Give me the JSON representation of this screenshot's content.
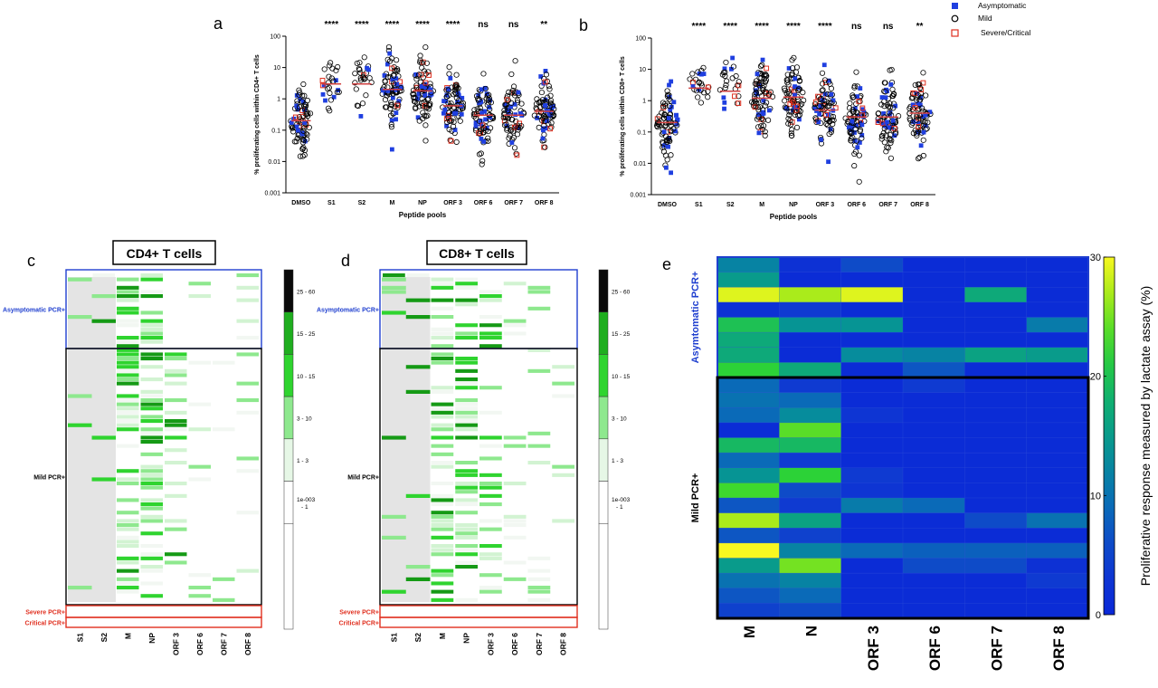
{
  "chart_data": [
    {
      "panel": "a",
      "type": "scatter",
      "ylabel": "% proliferating cells within CD4+ T cells",
      "xlabel": "Peptide pools",
      "yscale": "log",
      "ylim": [
        0.001,
        100
      ],
      "yticks": [
        "0.001",
        "0.01",
        "0.1",
        "1",
        "10",
        "100"
      ],
      "categories": [
        "DMSO",
        "S1",
        "S2",
        "M",
        "NP",
        "ORF 3",
        "ORF 6",
        "ORF 7",
        "ORF 8"
      ],
      "significance": [
        "",
        "****",
        "****",
        "****",
        "****",
        "****",
        "ns",
        "ns",
        "**"
      ],
      "medians": [
        0.2,
        3,
        3,
        2,
        1.8,
        0.6,
        0.3,
        0.3,
        0.4
      ]
    },
    {
      "panel": "b",
      "type": "scatter",
      "ylabel": "% proliferating cells within CD8+ T cells",
      "xlabel": "Peptide pools",
      "yscale": "log",
      "ylim": [
        0.001,
        100
      ],
      "yticks": [
        "0.001",
        "0.01",
        "0.1",
        "1",
        "10",
        "100"
      ],
      "categories": [
        "DMSO",
        "S1",
        "S2",
        "M",
        "NP",
        "ORF 3",
        "ORF 6",
        "ORF 7",
        "ORF 8"
      ],
      "significance": [
        "",
        "****",
        "****",
        "****",
        "****",
        "****",
        "ns",
        "ns",
        "**"
      ],
      "medians": [
        0.2,
        2.5,
        2,
        1.2,
        1.3,
        0.5,
        0.3,
        0.3,
        0.4
      ],
      "legend": [
        {
          "label": "Asymptomatic",
          "marker": "filled-square",
          "color": "#1f3fe0"
        },
        {
          "label": "Mild",
          "marker": "open-circle",
          "color": "#000000"
        },
        {
          "label": "Severe/Critical",
          "marker": "open-square",
          "color": "#e03020"
        }
      ],
      "legend_position": "top-right"
    },
    {
      "panel": "c",
      "type": "heatmap",
      "title": "CD4+ T cells",
      "columns": [
        "S1",
        "S2",
        "M",
        "NP",
        "ORF 3",
        "ORF 6",
        "ORF 7",
        "ORF 8"
      ],
      "groups": [
        {
          "label": "Asymptomatic PCR+",
          "color": "#1f3fcf"
        },
        {
          "label": "Mild PCR+",
          "color": "#000000"
        },
        {
          "label": "Severe PCR+",
          "color": "#e03020"
        },
        {
          "label": "Critical PCR+",
          "color": "#e03020"
        }
      ],
      "colorbar": [
        "25 - 60",
        "15 - 25",
        "10 - 15",
        "3 - 10",
        "1 - 3",
        "1e-003 - 1"
      ]
    },
    {
      "panel": "d",
      "type": "heatmap",
      "title": "CD8+ T cells",
      "columns": [
        "S1",
        "S2",
        "M",
        "NP",
        "ORF 3",
        "ORF 6",
        "ORF 7",
        "ORF 8"
      ],
      "groups": [
        {
          "label": "Asymptomatic PCR+",
          "color": "#1f3fcf"
        },
        {
          "label": "Mild PCR+",
          "color": "#000000"
        },
        {
          "label": "Severe PCR+",
          "color": "#e03020"
        },
        {
          "label": "Critical PCR+",
          "color": "#e03020"
        }
      ],
      "colorbar": [
        "25 - 60",
        "15 - 25",
        "10 - 15",
        "3 - 10",
        "1 - 3",
        "1e-003 - 1"
      ]
    },
    {
      "panel": "e",
      "type": "heatmap",
      "columns": [
        "M",
        "N",
        "ORF 3",
        "ORF 6",
        "ORF 7",
        "ORF 8"
      ],
      "groups": [
        {
          "label": "Asymtomatic PCR+",
          "color": "#1f3fcf"
        },
        {
          "label": "Mild PCR+",
          "color": "#000000"
        }
      ],
      "colorbar_label": "Proliferative response measured by lactate assay (%)",
      "colorbar_range": [
        0,
        30
      ],
      "colorbar_ticks": [
        "0",
        "10",
        "20",
        "30"
      ],
      "rows": [
        [
          12,
          2,
          6,
          1,
          1,
          1
        ],
        [
          15,
          1,
          1,
          1,
          1,
          1
        ],
        [
          29,
          27,
          29,
          1,
          17,
          1
        ],
        [
          2,
          4,
          1,
          1,
          1,
          1
        ],
        [
          20,
          14,
          14,
          1,
          1,
          11
        ],
        [
          17,
          1,
          1,
          1,
          1,
          1
        ],
        [
          17,
          1,
          13,
          12,
          16,
          15
        ],
        [
          22,
          17,
          1,
          7,
          1,
          1
        ],
        [
          9,
          4,
          1,
          4,
          1,
          1
        ],
        [
          10,
          9,
          1,
          1,
          1,
          1
        ],
        [
          9,
          13,
          3,
          1,
          1,
          1
        ],
        [
          1,
          24,
          1,
          1,
          1,
          1
        ],
        [
          19,
          19,
          1,
          1,
          1,
          1
        ],
        [
          9,
          4,
          1,
          1,
          1,
          1
        ],
        [
          14,
          22,
          4,
          1,
          1,
          1
        ],
        [
          23,
          6,
          3,
          1,
          1,
          1
        ],
        [
          7,
          4,
          11,
          9,
          1,
          1
        ],
        [
          27,
          16,
          1,
          1,
          6,
          10
        ],
        [
          7,
          5,
          1,
          1,
          1,
          1
        ],
        [
          30,
          12,
          9,
          8,
          8,
          8
        ],
        [
          15,
          25,
          1,
          6,
          6,
          2
        ],
        [
          10,
          12,
          1,
          1,
          1,
          4
        ],
        [
          7,
          9,
          1,
          1,
          1,
          1
        ],
        [
          5,
          6,
          1,
          1,
          1,
          1
        ]
      ],
      "asymptomatic_rows": 8
    }
  ],
  "panel_letters": [
    "a",
    "b",
    "c",
    "d",
    "e"
  ],
  "colors": {
    "asymptomatic": "#1f3fe0",
    "mild": "#000000",
    "severe": "#e03020",
    "median": "#d04040"
  }
}
